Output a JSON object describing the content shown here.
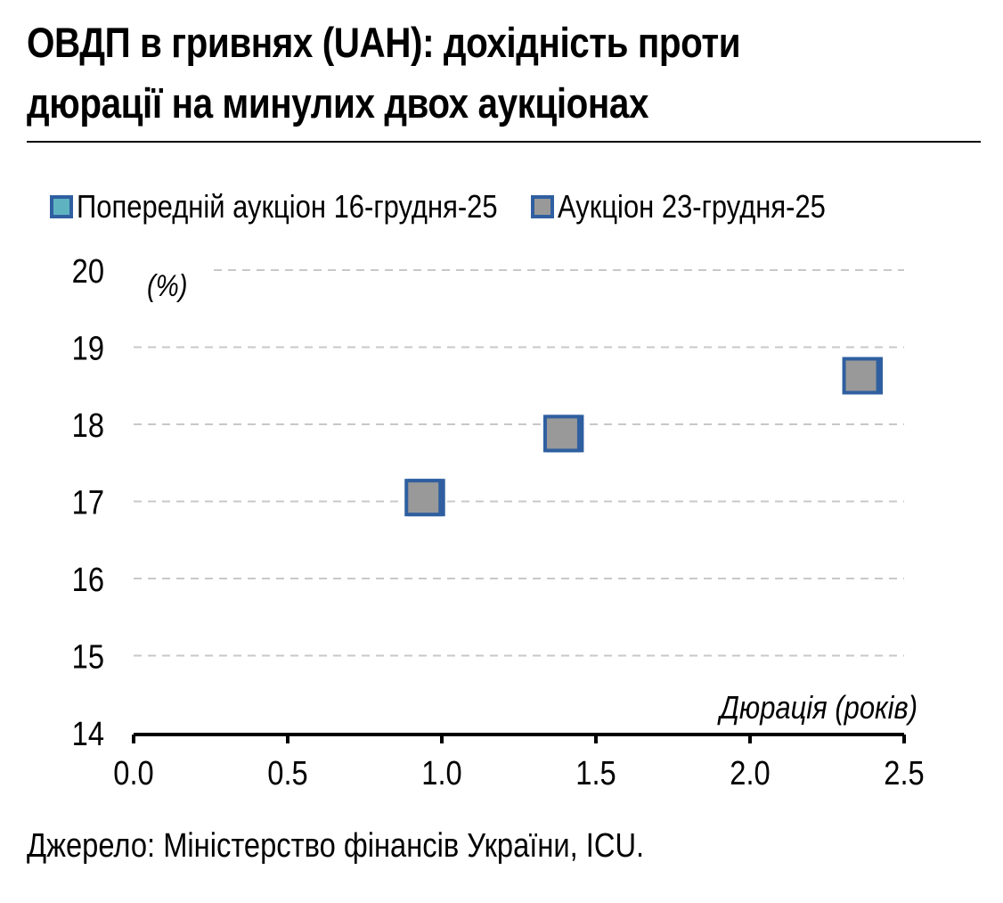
{
  "title_line1": "ОВДП в гривнях (UAH): дохідність проти",
  "title_line2": "дюрації на минулих двох аукціонах",
  "source": "Джерело: Міністерство фінансів України, ICU.",
  "colors": {
    "prev_fill": "#5fb3c1",
    "curr_fill": "#999999",
    "marker_border": "#2f5fa0",
    "grid": "#c8c8c8",
    "axis": "#000000"
  },
  "chart_data": {
    "type": "scatter",
    "title": "ОВДП в гривнях (UAH): дохідність проти дюрації на минулих двох аукціонах",
    "xlabel": "Дюрація (років)",
    "ylabel": "(%)",
    "xlim": [
      0,
      2.5
    ],
    "ylim": [
      14,
      20
    ],
    "x_ticks": [
      "0.0",
      "0.5",
      "1.0",
      "1.5",
      "2.0",
      "2.5"
    ],
    "y_ticks": [
      "14",
      "15",
      "16",
      "17",
      "18",
      "19",
      "20"
    ],
    "grid": "horizontal dashed",
    "legend_position": "top",
    "series": [
      {
        "name": "Попередній аукціон 16-грудня-25",
        "color": "#5fb3c1",
        "points": [
          {
            "x": 0.95,
            "y": 17.05
          },
          {
            "x": 1.4,
            "y": 17.88
          },
          {
            "x": 2.37,
            "y": 18.63
          }
        ]
      },
      {
        "name": "Аукціон 23-грудня-25",
        "color": "#999999",
        "points": [
          {
            "x": 0.94,
            "y": 17.05
          },
          {
            "x": 1.39,
            "y": 17.88
          },
          {
            "x": 2.36,
            "y": 18.63
          }
        ]
      }
    ]
  }
}
